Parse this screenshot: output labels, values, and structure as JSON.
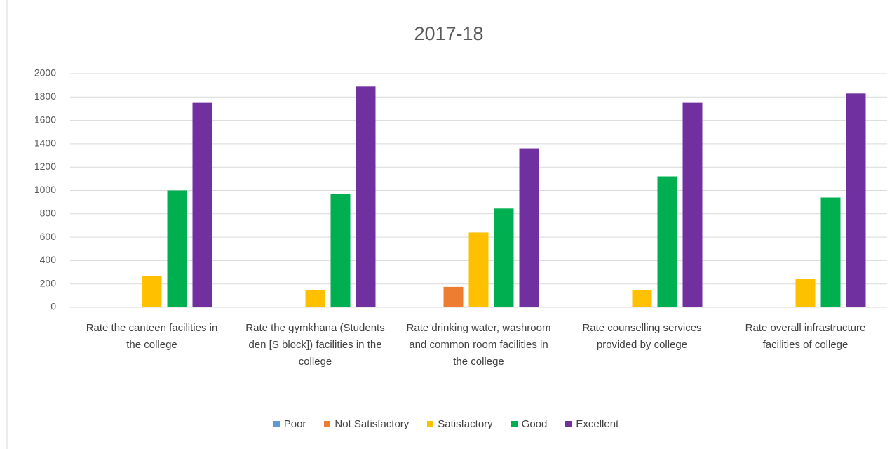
{
  "chart_data": {
    "type": "bar",
    "title": "2017-18",
    "categories": [
      "Rate the canteen facilities in the college",
      "Rate the gymkhana (Students den [S block]) facilities in the college",
      "Rate drinking water, washroom and common room facilities in the college",
      "Rate counselling services provided by college",
      "Rate overall infrastructure facilities of college"
    ],
    "series": [
      {
        "name": "Poor",
        "color": "#5b9bd5",
        "values": [
          0,
          0,
          0,
          0,
          0
        ]
      },
      {
        "name": "Not Satisfactory",
        "color": "#ed7d31",
        "values": [
          0,
          0,
          175,
          0,
          0
        ]
      },
      {
        "name": "Satisfactory",
        "color": "#ffc000",
        "values": [
          270,
          150,
          640,
          150,
          245
        ]
      },
      {
        "name": "Good",
        "color": "#00b050",
        "values": [
          1000,
          970,
          845,
          1120,
          940
        ]
      },
      {
        "name": "Excellent",
        "color": "#7030a0",
        "values": [
          1750,
          1890,
          1360,
          1750,
          1830
        ]
      }
    ],
    "ylim": [
      0,
      2000
    ],
    "yticks": [
      0,
      200,
      400,
      600,
      800,
      1000,
      1200,
      1400,
      1600,
      1800,
      2000
    ],
    "grid": true,
    "legend": "bottom"
  }
}
